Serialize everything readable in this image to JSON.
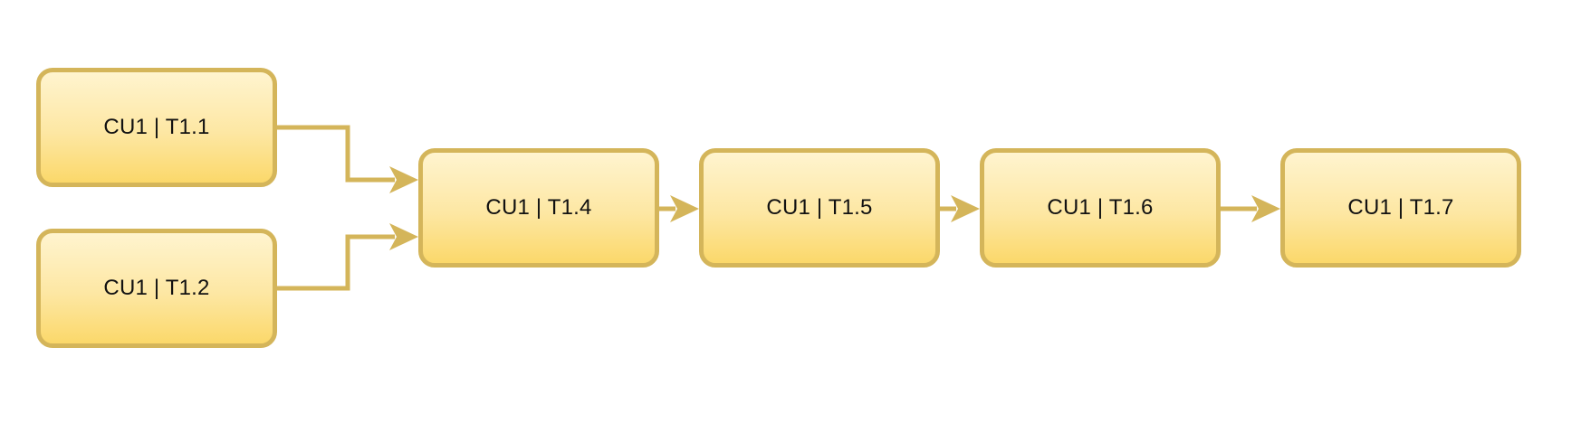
{
  "nodes": [
    {
      "id": "n1",
      "label": "CU1 | T1.1"
    },
    {
      "id": "n2",
      "label": "CU1 | T1.2"
    },
    {
      "id": "n4",
      "label": "CU1 | T1.4"
    },
    {
      "id": "n5",
      "label": "CU1 | T1.5"
    },
    {
      "id": "n6",
      "label": "CU1 | T1.6"
    },
    {
      "id": "n7",
      "label": "CU1 | T1.7"
    }
  ],
  "edges": [
    {
      "from": "n1",
      "to": "n4"
    },
    {
      "from": "n2",
      "to": "n4"
    },
    {
      "from": "n4",
      "to": "n5"
    },
    {
      "from": "n5",
      "to": "n6"
    },
    {
      "from": "n6",
      "to": "n7"
    }
  ],
  "colors": {
    "node_border": "#d4b55a",
    "node_fill_top": "#fff4cf",
    "node_fill_bottom": "#fbd86a",
    "connector": "#d4b55a",
    "text": "#111111"
  }
}
